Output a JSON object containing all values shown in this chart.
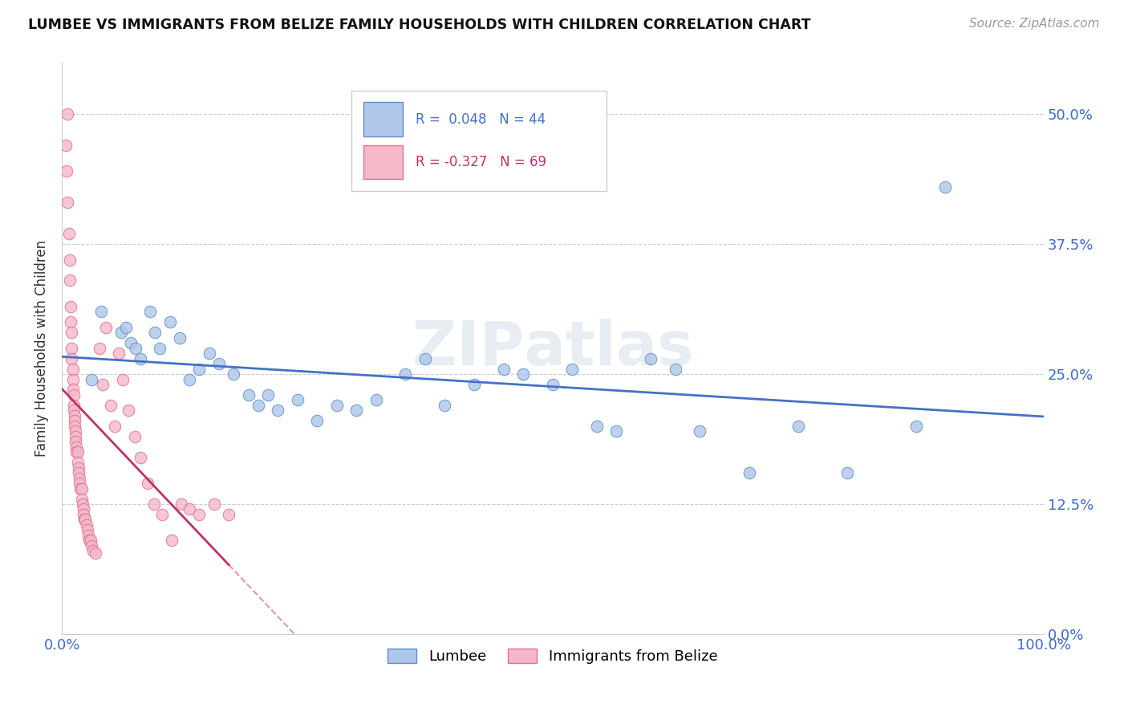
{
  "title": "LUMBEE VS IMMIGRANTS FROM BELIZE FAMILY HOUSEHOLDS WITH CHILDREN CORRELATION CHART",
  "source": "Source: ZipAtlas.com",
  "ylabel": "Family Households with Children",
  "xlim": [
    0.0,
    1.0
  ],
  "ylim": [
    0.0,
    0.55
  ],
  "yticks": [
    0.0,
    0.125,
    0.25,
    0.375,
    0.5
  ],
  "ytick_labels": [
    "0.0%",
    "12.5%",
    "25.0%",
    "37.5%",
    "50.0%"
  ],
  "xtick_labels": [
    "0.0%",
    "100.0%"
  ],
  "lumbee_color": "#aec6e8",
  "belize_color": "#f4b8c8",
  "lumbee_edge": "#5b8fc9",
  "belize_edge": "#e07090",
  "trend_lumbee": "#4472c4",
  "trend_belize": "#c0306a",
  "background_color": "#ffffff",
  "lumbee_points": [
    [
      0.03,
      0.245
    ],
    [
      0.04,
      0.31
    ],
    [
      0.06,
      0.29
    ],
    [
      0.065,
      0.295
    ],
    [
      0.07,
      0.28
    ],
    [
      0.075,
      0.275
    ],
    [
      0.08,
      0.265
    ],
    [
      0.09,
      0.31
    ],
    [
      0.095,
      0.29
    ],
    [
      0.1,
      0.275
    ],
    [
      0.11,
      0.3
    ],
    [
      0.12,
      0.285
    ],
    [
      0.13,
      0.245
    ],
    [
      0.14,
      0.255
    ],
    [
      0.15,
      0.27
    ],
    [
      0.16,
      0.26
    ],
    [
      0.175,
      0.25
    ],
    [
      0.19,
      0.23
    ],
    [
      0.2,
      0.22
    ],
    [
      0.21,
      0.23
    ],
    [
      0.22,
      0.215
    ],
    [
      0.24,
      0.225
    ],
    [
      0.26,
      0.205
    ],
    [
      0.28,
      0.22
    ],
    [
      0.3,
      0.215
    ],
    [
      0.32,
      0.225
    ],
    [
      0.35,
      0.25
    ],
    [
      0.37,
      0.265
    ],
    [
      0.39,
      0.22
    ],
    [
      0.42,
      0.24
    ],
    [
      0.45,
      0.255
    ],
    [
      0.47,
      0.25
    ],
    [
      0.5,
      0.24
    ],
    [
      0.52,
      0.255
    ],
    [
      0.545,
      0.2
    ],
    [
      0.565,
      0.195
    ],
    [
      0.6,
      0.265
    ],
    [
      0.625,
      0.255
    ],
    [
      0.65,
      0.195
    ],
    [
      0.7,
      0.155
    ],
    [
      0.75,
      0.2
    ],
    [
      0.8,
      0.155
    ],
    [
      0.87,
      0.2
    ],
    [
      0.9,
      0.43
    ]
  ],
  "belize_points": [
    [
      0.004,
      0.47
    ],
    [
      0.005,
      0.445
    ],
    [
      0.006,
      0.415
    ],
    [
      0.007,
      0.385
    ],
    [
      0.008,
      0.36
    ],
    [
      0.008,
      0.34
    ],
    [
      0.009,
      0.315
    ],
    [
      0.009,
      0.3
    ],
    [
      0.01,
      0.29
    ],
    [
      0.01,
      0.275
    ],
    [
      0.01,
      0.265
    ],
    [
      0.011,
      0.255
    ],
    [
      0.011,
      0.245
    ],
    [
      0.011,
      0.235
    ],
    [
      0.012,
      0.23
    ],
    [
      0.012,
      0.22
    ],
    [
      0.012,
      0.215
    ],
    [
      0.013,
      0.21
    ],
    [
      0.013,
      0.205
    ],
    [
      0.013,
      0.2
    ],
    [
      0.014,
      0.195
    ],
    [
      0.014,
      0.19
    ],
    [
      0.014,
      0.185
    ],
    [
      0.015,
      0.18
    ],
    [
      0.015,
      0.175
    ],
    [
      0.016,
      0.175
    ],
    [
      0.016,
      0.165
    ],
    [
      0.017,
      0.16
    ],
    [
      0.017,
      0.155
    ],
    [
      0.018,
      0.15
    ],
    [
      0.018,
      0.145
    ],
    [
      0.019,
      0.14
    ],
    [
      0.02,
      0.14
    ],
    [
      0.02,
      0.13
    ],
    [
      0.021,
      0.125
    ],
    [
      0.022,
      0.12
    ],
    [
      0.022,
      0.115
    ],
    [
      0.023,
      0.11
    ],
    [
      0.024,
      0.11
    ],
    [
      0.025,
      0.105
    ],
    [
      0.026,
      0.1
    ],
    [
      0.027,
      0.095
    ],
    [
      0.028,
      0.09
    ],
    [
      0.029,
      0.09
    ],
    [
      0.03,
      0.085
    ],
    [
      0.032,
      0.08
    ],
    [
      0.034,
      0.078
    ],
    [
      0.038,
      0.275
    ],
    [
      0.042,
      0.24
    ],
    [
      0.045,
      0.295
    ],
    [
      0.05,
      0.22
    ],
    [
      0.054,
      0.2
    ],
    [
      0.058,
      0.27
    ],
    [
      0.062,
      0.245
    ],
    [
      0.068,
      0.215
    ],
    [
      0.074,
      0.19
    ],
    [
      0.08,
      0.17
    ],
    [
      0.087,
      0.145
    ],
    [
      0.094,
      0.125
    ],
    [
      0.102,
      0.115
    ],
    [
      0.112,
      0.09
    ],
    [
      0.122,
      0.125
    ],
    [
      0.13,
      0.12
    ],
    [
      0.14,
      0.115
    ],
    [
      0.155,
      0.125
    ],
    [
      0.17,
      0.115
    ],
    [
      0.006,
      0.5
    ]
  ]
}
